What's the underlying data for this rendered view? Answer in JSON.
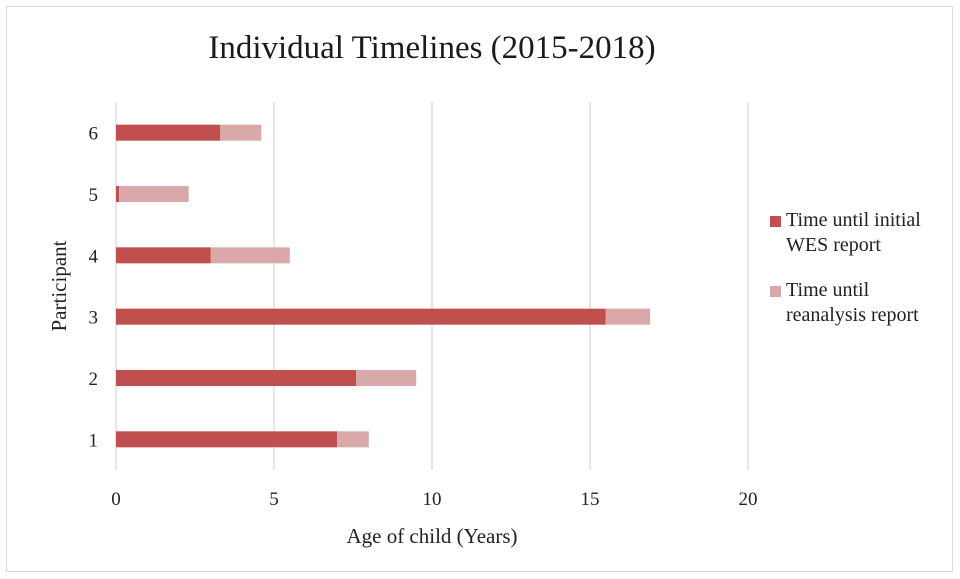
{
  "chart_data": {
    "type": "bar",
    "orientation": "horizontal",
    "stacked": true,
    "title": "Individual Timelines (2015-2018)",
    "xlabel": "Age of child (Years)",
    "ylabel": "Participant",
    "xlim": [
      0,
      20
    ],
    "xticks": [
      0,
      5,
      10,
      15,
      20
    ],
    "categories": [
      "1",
      "2",
      "3",
      "4",
      "5",
      "6"
    ],
    "series": [
      {
        "name": "Time until initial WES report",
        "color": "#c0504d",
        "values": [
          7.0,
          7.6,
          15.5,
          3.0,
          0.1,
          3.3
        ]
      },
      {
        "name": "Time until reanalysis report",
        "color": "#d9a8a8",
        "values": [
          1.0,
          1.9,
          1.4,
          2.5,
          2.2,
          1.3
        ]
      }
    ],
    "grid": "vertical",
    "legend_position": "right"
  }
}
